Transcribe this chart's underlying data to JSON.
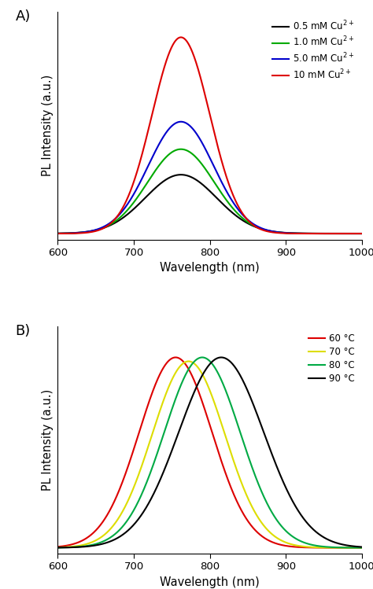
{
  "panel_A": {
    "label": "A)",
    "curves": [
      {
        "color": "#000000",
        "peak": 762,
        "sigma": 47,
        "amplitude": 0.3,
        "label": "0.5 mM Cu$^{2+}$"
      },
      {
        "color": "#00aa00",
        "peak": 762,
        "sigma": 44,
        "amplitude": 0.43,
        "label": "1.0 mM Cu$^{2+}$"
      },
      {
        "color": "#0000cc",
        "peak": 762,
        "sigma": 43,
        "amplitude": 0.57,
        "label": "5.0 mM Cu$^{2+}$"
      },
      {
        "color": "#dd0000",
        "peak": 762,
        "sigma": 38,
        "amplitude": 1.0,
        "label": "10 mM Cu$^{2+}$"
      }
    ],
    "xlabel": "Wavelength (nm)",
    "ylabel": "PL Intensity (a.u.)",
    "xlim": [
      600,
      1000
    ],
    "ylim": [
      -0.03,
      1.13
    ],
    "xticks": [
      600,
      700,
      800,
      900,
      1000
    ]
  },
  "panel_B": {
    "label": "B)",
    "curves": [
      {
        "color": "#dd0000",
        "peak": 755,
        "sigma": 48,
        "amplitude": 0.97,
        "label": "60 °C"
      },
      {
        "color": "#dddd00",
        "peak": 772,
        "sigma": 48,
        "amplitude": 0.95,
        "label": "70 °C"
      },
      {
        "color": "#00aa44",
        "peak": 790,
        "sigma": 50,
        "amplitude": 0.97,
        "label": "80 °C"
      },
      {
        "color": "#000000",
        "peak": 815,
        "sigma": 56,
        "amplitude": 0.97,
        "label": "90 °C"
      }
    ],
    "xlabel": "Wavelength (nm)",
    "ylabel": "PL Intensity (a.u.)",
    "xlim": [
      600,
      1000
    ],
    "ylim": [
      -0.03,
      1.13
    ],
    "xticks": [
      600,
      700,
      800,
      900,
      1000
    ]
  },
  "figsize": [
    4.74,
    7.49
  ],
  "dpi": 100,
  "background_color": "#ffffff",
  "legend_fontsize": 8.5,
  "axis_label_fontsize": 10.5,
  "tick_fontsize": 9.5,
  "panel_label_fontsize": 13
}
